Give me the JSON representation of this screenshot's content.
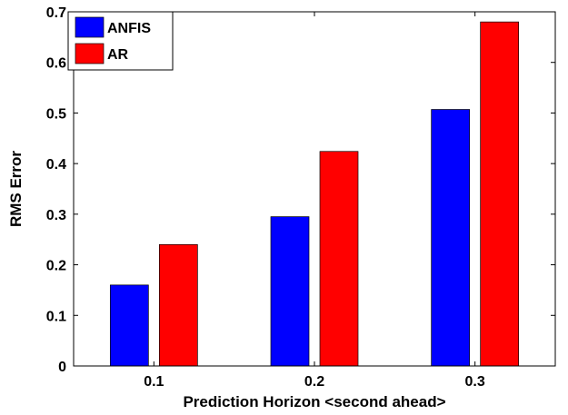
{
  "chart_data": {
    "type": "bar",
    "categories": [
      "0.1",
      "0.2",
      "0.3"
    ],
    "series": [
      {
        "name": "ANFIS",
        "values": [
          0.16,
          0.295,
          0.507
        ],
        "color": "#0000ff"
      },
      {
        "name": "AR",
        "values": [
          0.24,
          0.424,
          0.68
        ],
        "color": "#ff0000"
      }
    ],
    "xlabel": "Prediction Horizon <second ahead>",
    "ylabel": "RMS Error",
    "ylim": [
      0,
      0.7
    ],
    "yticks": [
      "0",
      "0.1",
      "0.2",
      "0.3",
      "0.4",
      "0.5",
      "0.6",
      "0.7"
    ],
    "legend_position": "top-left",
    "grid": false
  }
}
